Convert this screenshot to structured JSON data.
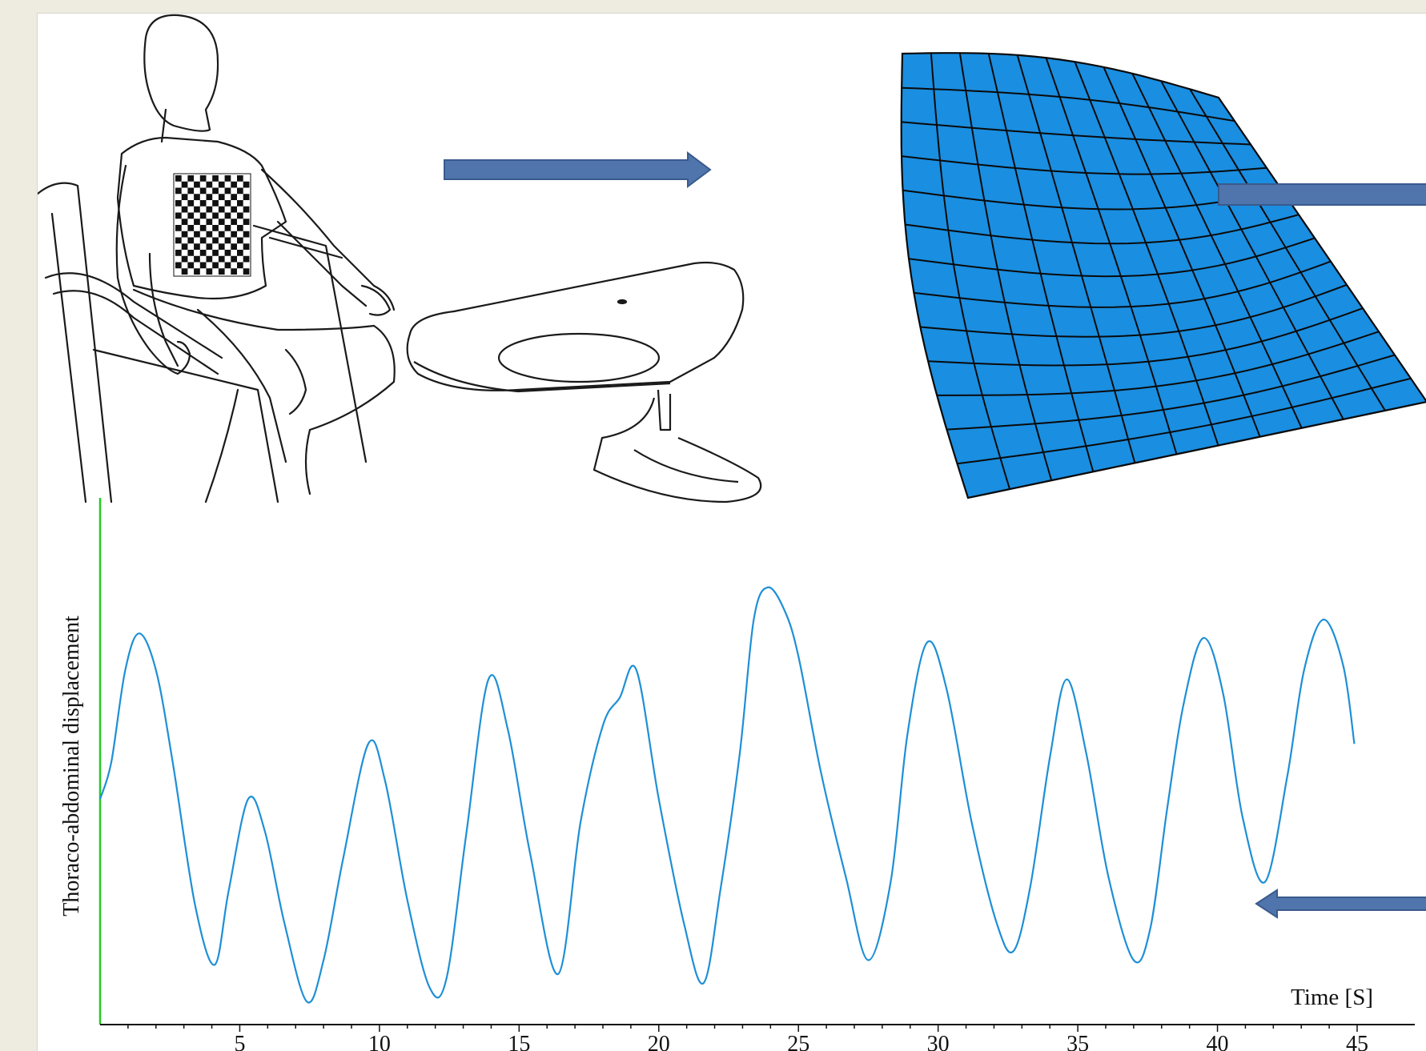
{
  "chart_data": {
    "type": "line",
    "xlabel": "Time [S]",
    "ylabel": "Thoraco-abdominal displacement",
    "xlim": [
      0,
      45
    ],
    "ylim": [
      0,
      1
    ],
    "x_ticks": [
      5,
      10,
      15,
      20,
      25,
      30,
      35,
      40,
      45
    ],
    "grid": false,
    "colors": {
      "line": "#1e8fd6",
      "y_axis": "#22cc22",
      "x_axis": "#000000"
    },
    "series": [
      {
        "points": [
          [
            0,
            0.45
          ],
          [
            0.4,
            0.53
          ],
          [
            0.9,
            0.73
          ],
          [
            1.4,
            0.81
          ],
          [
            2.0,
            0.73
          ],
          [
            2.6,
            0.53
          ],
          [
            3.4,
            0.22
          ],
          [
            4.1,
            0.09
          ],
          [
            4.6,
            0.25
          ],
          [
            5.3,
            0.45
          ],
          [
            5.9,
            0.38
          ],
          [
            6.6,
            0.18
          ],
          [
            7.4,
            0.01
          ],
          [
            8.0,
            0.1
          ],
          [
            8.7,
            0.32
          ],
          [
            9.6,
            0.57
          ],
          [
            10.2,
            0.49
          ],
          [
            11.0,
            0.23
          ],
          [
            11.8,
            0.04
          ],
          [
            12.4,
            0.06
          ],
          [
            13.1,
            0.37
          ],
          [
            13.9,
            0.71
          ],
          [
            14.6,
            0.6
          ],
          [
            15.4,
            0.33
          ],
          [
            16.4,
            0.07
          ],
          [
            17.2,
            0.4
          ],
          [
            18.0,
            0.61
          ],
          [
            18.6,
            0.67
          ],
          [
            19.2,
            0.73
          ],
          [
            20.0,
            0.45
          ],
          [
            20.9,
            0.18
          ],
          [
            21.6,
            0.05
          ],
          [
            22.2,
            0.25
          ],
          [
            22.9,
            0.55
          ],
          [
            23.4,
            0.84
          ],
          [
            23.9,
            0.91
          ],
          [
            24.5,
            0.86
          ],
          [
            25.0,
            0.76
          ],
          [
            25.8,
            0.51
          ],
          [
            26.7,
            0.28
          ],
          [
            27.5,
            0.1
          ],
          [
            28.3,
            0.27
          ],
          [
            28.9,
            0.59
          ],
          [
            29.6,
            0.79
          ],
          [
            30.3,
            0.69
          ],
          [
            31.2,
            0.4
          ],
          [
            32.1,
            0.18
          ],
          [
            32.7,
            0.12
          ],
          [
            33.3,
            0.26
          ],
          [
            34.0,
            0.54
          ],
          [
            34.6,
            0.71
          ],
          [
            35.3,
            0.55
          ],
          [
            36.1,
            0.28
          ],
          [
            37.0,
            0.1
          ],
          [
            37.6,
            0.17
          ],
          [
            38.2,
            0.43
          ],
          [
            38.8,
            0.66
          ],
          [
            39.5,
            0.8
          ],
          [
            40.2,
            0.68
          ],
          [
            40.9,
            0.41
          ],
          [
            41.7,
            0.27
          ],
          [
            42.5,
            0.5
          ],
          [
            43.1,
            0.73
          ],
          [
            43.8,
            0.84
          ],
          [
            44.5,
            0.74
          ],
          [
            44.9,
            0.57
          ]
        ]
      }
    ]
  },
  "illustration": {
    "icons": [
      "seated-person-icon",
      "chest-checkerboard-icon",
      "projector-camera-icon",
      "arrow-right-icon",
      "surface-mesh-icon",
      "arrow-left-icon"
    ],
    "mesh_color": "#1a8ee0",
    "arrow_color": "#4f75ac"
  }
}
